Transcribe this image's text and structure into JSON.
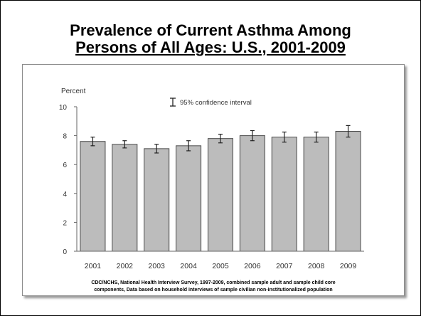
{
  "title": {
    "line1": "Prevalence of Current Asthma Among",
    "line2": "Persons of All Ages: U.S., 2001-2009"
  },
  "source": {
    "line1": "CDC/NCHS, National Health Interview Survey, 1997-2009, combined sample adult and sample child core",
    "line2": "components,  Data based on household interviews of sample civilian non-institutionalized population"
  },
  "colors": {
    "bar_fill": "#bcbcbc",
    "bar_stroke": "#4a4a4a",
    "error_bar": "#222222"
  },
  "chart_data": {
    "type": "bar",
    "title": "",
    "xlabel": "",
    "ylabel": "Percent",
    "legend": "95% confidence interval",
    "categories": [
      "2001",
      "2002",
      "2003",
      "2004",
      "2005",
      "2006",
      "2007",
      "2008",
      "2009"
    ],
    "values": [
      7.6,
      7.4,
      7.1,
      7.3,
      7.8,
      8.0,
      7.9,
      7.9,
      8.3
    ],
    "ci_lower": [
      7.3,
      7.15,
      6.8,
      6.95,
      7.5,
      7.65,
      7.55,
      7.55,
      7.9
    ],
    "ci_upper": [
      7.9,
      7.65,
      7.4,
      7.65,
      8.1,
      8.35,
      8.25,
      8.25,
      8.7
    ],
    "ylim": [
      0,
      10
    ],
    "yticks": [
      0,
      2,
      4,
      6,
      8,
      10
    ],
    "grid": false
  }
}
